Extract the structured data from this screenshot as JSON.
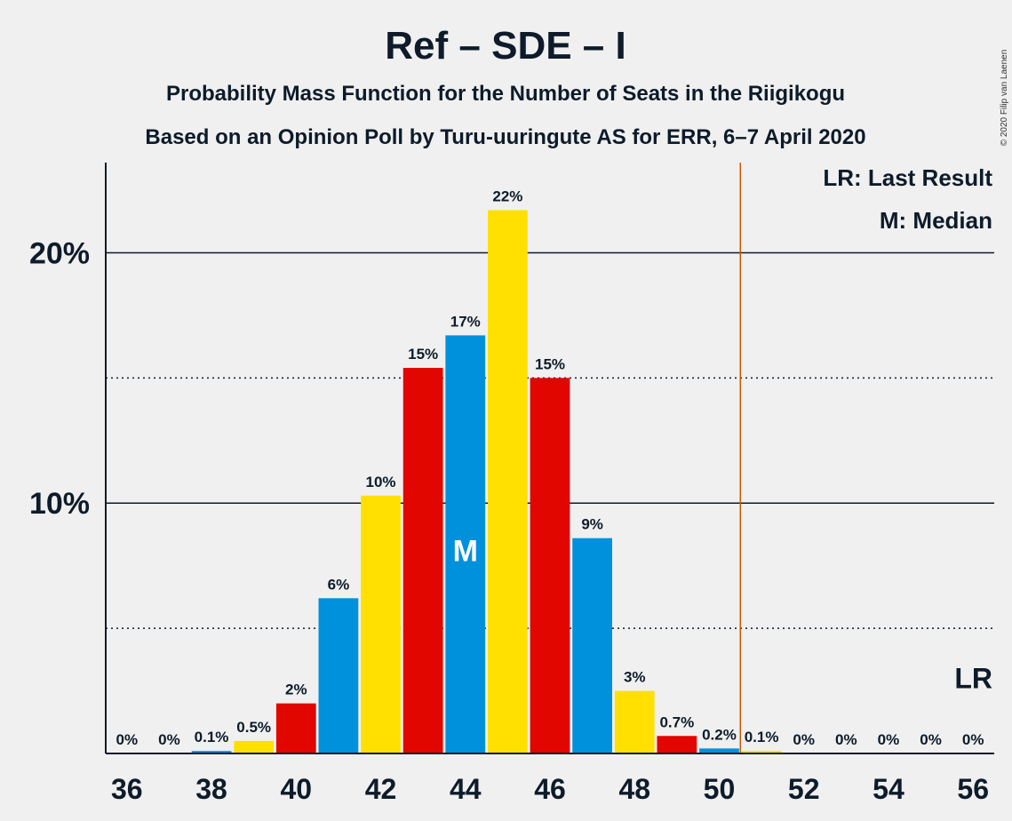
{
  "chart_data": {
    "type": "bar",
    "title": "Ref – SDE – I",
    "subtitle1": "Probability Mass Function for the Number of Seats in the Riigikogu",
    "subtitle2": "Based on an Opinion Poll by Turu-uuringute AS for ERR, 6–7 April 2020",
    "copyright": "© 2020 Filip van Laenen",
    "legend": {
      "lr": "LR: Last Result",
      "median": "M: Median"
    },
    "lr_mark": "LR",
    "median_mark": "M",
    "median_seats": 44,
    "last_result_seats": 50.5,
    "ylim": [
      0,
      23.6
    ],
    "yticks": [
      {
        "value": 10,
        "label": "10%"
      },
      {
        "value": 20,
        "label": "20%"
      }
    ],
    "dotted_lines": [
      5,
      15
    ],
    "xlim": [
      35.5,
      56.5
    ],
    "xticks": [
      36,
      38,
      40,
      42,
      44,
      46,
      48,
      50,
      52,
      54,
      56
    ],
    "colors": {
      "Ref": "#ffe000",
      "SDE": "#e10600",
      "I": "#0091dc",
      "last_result_line": "#c85a00",
      "axis": "#0d1b2a"
    },
    "bars": [
      {
        "seats": 36,
        "value": 0,
        "label": "0%",
        "color": "#0091dc"
      },
      {
        "seats": 37,
        "value": 0,
        "label": "0%",
        "color": "#ffe000"
      },
      {
        "seats": 38,
        "value": 0.1,
        "label": "0.1%",
        "color": "#0091dc"
      },
      {
        "seats": 39,
        "value": 0.5,
        "label": "0.5%",
        "color": "#ffe000"
      },
      {
        "seats": 40,
        "value": 2.0,
        "label": "2%",
        "color": "#e10600"
      },
      {
        "seats": 41,
        "value": 6.2,
        "label": "6%",
        "color": "#0091dc"
      },
      {
        "seats": 42,
        "value": 10.3,
        "label": "10%",
        "color": "#ffe000"
      },
      {
        "seats": 43,
        "value": 15.4,
        "label": "15%",
        "color": "#e10600"
      },
      {
        "seats": 44,
        "value": 16.7,
        "label": "17%",
        "color": "#0091dc"
      },
      {
        "seats": 45,
        "value": 21.7,
        "label": "22%",
        "color": "#ffe000"
      },
      {
        "seats": 46,
        "value": 15.0,
        "label": "15%",
        "color": "#e10600"
      },
      {
        "seats": 47,
        "value": 8.6,
        "label": "9%",
        "color": "#0091dc"
      },
      {
        "seats": 48,
        "value": 2.5,
        "label": "3%",
        "color": "#ffe000"
      },
      {
        "seats": 49,
        "value": 0.7,
        "label": "0.7%",
        "color": "#e10600"
      },
      {
        "seats": 50,
        "value": 0.2,
        "label": "0.2%",
        "color": "#0091dc"
      },
      {
        "seats": 51,
        "value": 0.1,
        "label": "0.1%",
        "color": "#ffe000"
      },
      {
        "seats": 52,
        "value": 0,
        "label": "0%",
        "color": "#e10600"
      },
      {
        "seats": 53,
        "value": 0,
        "label": "0%",
        "color": "#0091dc"
      },
      {
        "seats": 54,
        "value": 0,
        "label": "0%",
        "color": "#ffe000"
      },
      {
        "seats": 55,
        "value": 0,
        "label": "0%",
        "color": "#e10600"
      },
      {
        "seats": 56,
        "value": 0,
        "label": "0%",
        "color": "#0091dc"
      }
    ]
  }
}
